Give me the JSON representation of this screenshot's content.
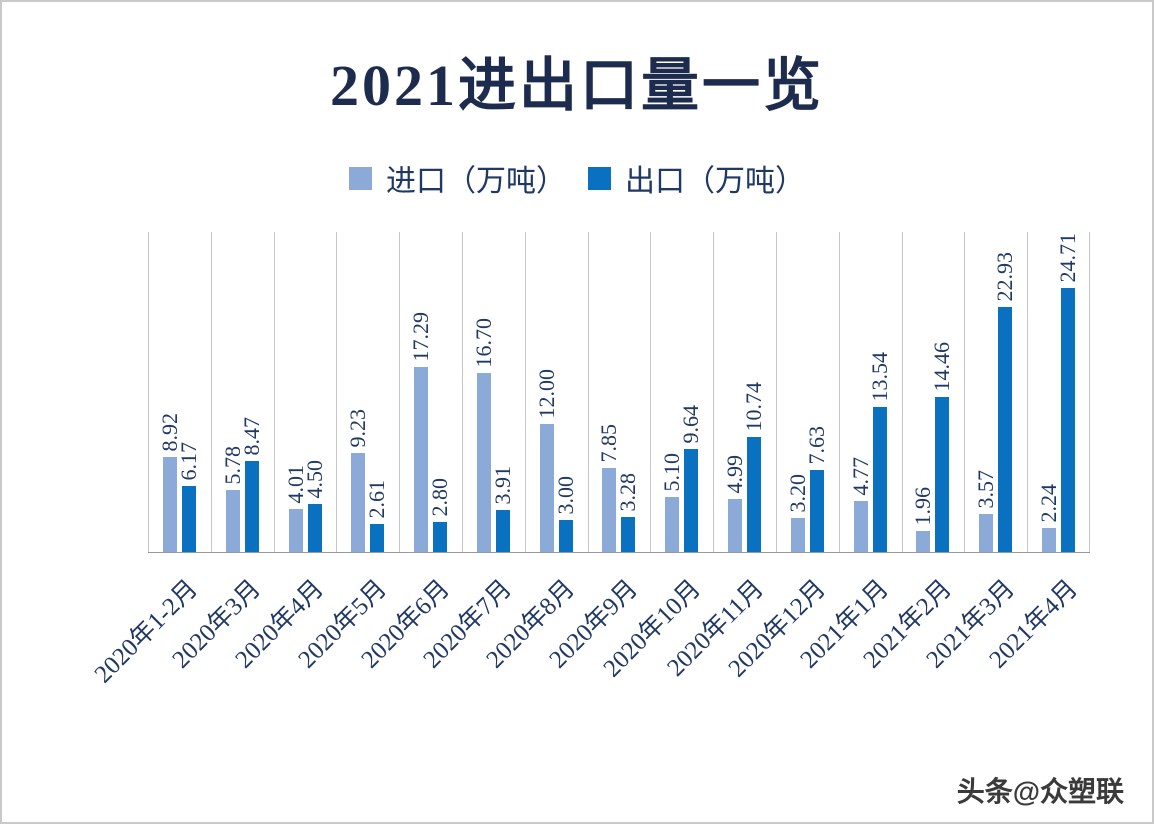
{
  "page": {
    "watermark": "头条@众塑联"
  },
  "chart_data": {
    "type": "bar",
    "title": "2021进出口量一览",
    "categories": [
      "2020年1-2月",
      "2020年3月",
      "2020年4月",
      "2020年5月",
      "2020年6月",
      "2020年7月",
      "2020年8月",
      "2020年9月",
      "2020年10月",
      "2020年11月",
      "2020年12月",
      "2021年1月",
      "2021年2月",
      "2021年3月",
      "2021年4月"
    ],
    "series": [
      {
        "name": "进口（万吨）",
        "color": "#8caad8",
        "values": [
          8.92,
          5.78,
          4.01,
          9.23,
          17.29,
          16.7,
          12.0,
          7.85,
          5.1,
          4.99,
          3.2,
          4.77,
          1.96,
          3.57,
          2.24
        ]
      },
      {
        "name": "出口（万吨）",
        "color": "#0a70c0",
        "values": [
          6.17,
          8.47,
          4.5,
          2.61,
          2.8,
          3.91,
          3.0,
          3.28,
          9.64,
          10.74,
          7.63,
          13.54,
          14.46,
          22.93,
          24.71
        ]
      }
    ],
    "ylim": [
      0,
      30
    ],
    "xlabel": "",
    "ylabel": "",
    "grid": "vertical",
    "legend_position": "top",
    "value_label_decimals": 2,
    "label_color": "#203864",
    "axis_label_color": "#203864"
  }
}
